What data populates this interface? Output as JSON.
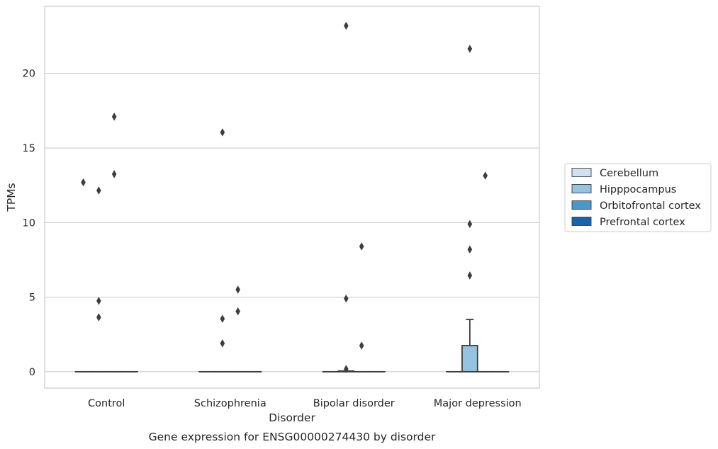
{
  "chart_data": {
    "type": "box",
    "caption": "Gene expression for ENSG00000274430 by disorder",
    "xlabel": "Disorder",
    "ylabel": "TPMs",
    "categories": [
      "Control",
      "Schizophrenia",
      "Bipolar disorder",
      "Major depression"
    ],
    "ylim": [
      -1.1,
      24.5
    ],
    "yticks": [
      0,
      5,
      10,
      15,
      20
    ],
    "grid": "horizontal",
    "legend_position": "right",
    "series": [
      {
        "name": "Cerebellum",
        "color": "#d0e1f2",
        "boxes": [
          {
            "q1": 0,
            "median": 0,
            "q3": 0,
            "whisker_low": 0,
            "whisker_high": 0,
            "outliers": [
              12.7
            ]
          },
          {
            "q1": 0,
            "median": 0,
            "q3": 0,
            "whisker_low": 0,
            "whisker_high": 0,
            "outliers": []
          },
          {
            "q1": 0,
            "median": 0,
            "q3": 0,
            "whisker_low": 0,
            "whisker_high": 0,
            "outliers": []
          },
          {
            "q1": 0,
            "median": 0,
            "q3": 0,
            "whisker_low": 0,
            "whisker_high": 0,
            "outliers": []
          }
        ]
      },
      {
        "name": "Hipppocampus",
        "color": "#94c4df",
        "boxes": [
          {
            "q1": 0,
            "median": 0,
            "q3": 0,
            "whisker_low": 0,
            "whisker_high": 0,
            "outliers": [
              12.15,
              4.75,
              3.65
            ]
          },
          {
            "q1": 0,
            "median": 0,
            "q3": 0,
            "whisker_low": 0,
            "whisker_high": 0,
            "outliers": [
              16.05,
              3.55,
              1.9
            ]
          },
          {
            "q1": 0,
            "median": 0,
            "q3": 0.05,
            "whisker_low": 0,
            "whisker_high": 0.05,
            "outliers": [
              23.2,
              4.9,
              0.18
            ]
          },
          {
            "q1": 0,
            "median": 0,
            "q3": 1.75,
            "whisker_low": 0,
            "whisker_high": 3.5,
            "outliers": [
              21.65,
              9.9,
              8.2,
              6.45
            ]
          }
        ]
      },
      {
        "name": "Orbitofrontal cortex",
        "color": "#4a98c9",
        "boxes": [
          {
            "q1": 0,
            "median": 0,
            "q3": 0,
            "whisker_low": 0,
            "whisker_high": 0,
            "outliers": [
              17.1,
              13.25
            ]
          },
          {
            "q1": 0,
            "median": 0,
            "q3": 0,
            "whisker_low": 0,
            "whisker_high": 0,
            "outliers": [
              5.5,
              4.05
            ]
          },
          {
            "q1": 0,
            "median": 0,
            "q3": 0,
            "whisker_low": 0,
            "whisker_high": 0,
            "outliers": [
              8.4,
              1.75
            ]
          },
          {
            "q1": 0,
            "median": 0,
            "q3": 0,
            "whisker_low": 0,
            "whisker_high": 0,
            "outliers": [
              13.15
            ]
          }
        ]
      },
      {
        "name": "Prefrontal cortex",
        "color": "#1764ab",
        "boxes": [
          {
            "q1": 0,
            "median": 0,
            "q3": 0,
            "whisker_low": 0,
            "whisker_high": 0,
            "outliers": []
          },
          {
            "q1": 0,
            "median": 0,
            "q3": 0,
            "whisker_low": 0,
            "whisker_high": 0,
            "outliers": []
          },
          {
            "q1": 0,
            "median": 0,
            "q3": 0,
            "whisker_low": 0,
            "whisker_high": 0,
            "outliers": []
          },
          {
            "q1": 0,
            "median": 0,
            "q3": 0,
            "whisker_low": 0,
            "whisker_high": 0,
            "outliers": []
          }
        ]
      }
    ]
  }
}
